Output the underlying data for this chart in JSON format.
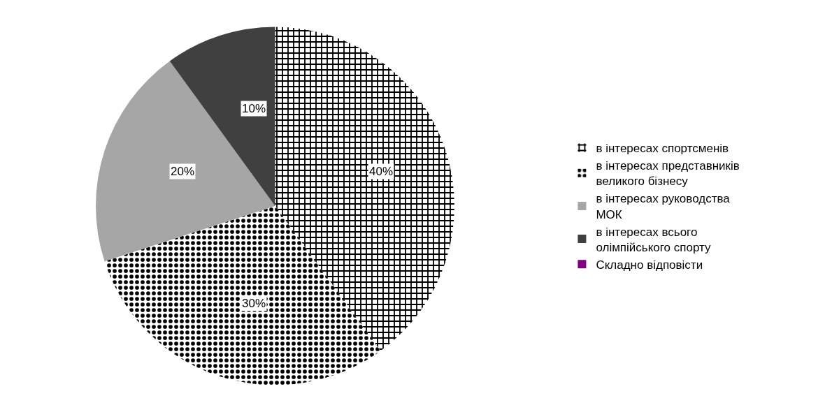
{
  "chart_data": {
    "type": "pie",
    "categories": [
      "в інтересах спортсменів",
      "в інтересах представників великого бізнесу",
      "в інтересах руководства МОК",
      "в інтересах всього олімпійського спорту",
      "Складно відповісти"
    ],
    "values": [
      40,
      30,
      20,
      10,
      0
    ],
    "value_labels": [
      "40%",
      "30%",
      "20%",
      "10%",
      null
    ],
    "colors": [
      "#000000",
      "#000000",
      "#a6a6a6",
      "#404040",
      "#800080"
    ],
    "legend": "right"
  }
}
